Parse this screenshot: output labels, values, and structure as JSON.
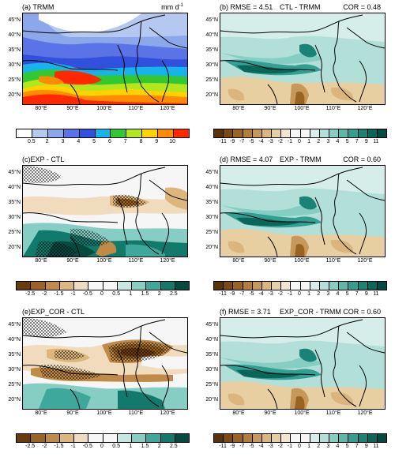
{
  "panels": [
    {
      "id": "a",
      "title_left": "(a) TRMM",
      "title_mid": "",
      "title_right": "mm d",
      "title_right_sup": "-1",
      "type": "precip",
      "colorbar": {
        "labels": [
          "0.5",
          "2",
          "3",
          "4",
          "5",
          "6",
          "7",
          "8",
          "9",
          "10"
        ],
        "colors": [
          "#ffffff",
          "#b4c8f0",
          "#8ca8eb",
          "#5a73e6",
          "#3250dc",
          "#16b4ec",
          "#32c832",
          "#b4e61e",
          "#ffd200",
          "#ff8c00",
          "#ff2800"
        ]
      }
    },
    {
      "id": "b",
      "title_left": "(b) RMSE = 4.51",
      "title_mid": "CTL - TRMM",
      "title_right": "COR = 0.48",
      "type": "diff-wide",
      "colorbar": {
        "labels": [
          "-11",
          "-9",
          "-7",
          "-5",
          "-4",
          "-3",
          "-2",
          "-1",
          "0",
          "1",
          "2",
          "3",
          "4",
          "5",
          "7",
          "9",
          "11"
        ],
        "colors": [
          "#5a3205",
          "#7c4a10",
          "#9a6420",
          "#b27e3a",
          "#c8985a",
          "#dab67c",
          "#e8cfa2",
          "#f4e6cc",
          "#f6f6f6",
          "#f6f6f6",
          "#d6eeea",
          "#b2e0d8",
          "#86cec4",
          "#5cb8ab",
          "#339e92",
          "#1a8276",
          "#0a665a",
          "#034a40"
        ]
      }
    },
    {
      "id": "c",
      "title_left": "(c)EXP - CTL",
      "title_mid": "",
      "title_right": "",
      "type": "diff-narrow",
      "colorbar": {
        "labels": [
          "-2.5",
          "-2",
          "-1.5",
          "-1",
          "-0.5",
          "0",
          "0.5",
          "1",
          "1.5",
          "2",
          "2.5"
        ],
        "colors": [
          "#6a3c0a",
          "#9a6420",
          "#c08a48",
          "#dcb67c",
          "#f0dcbc",
          "#f6f6f6",
          "#f6f6f6",
          "#c6e8e2",
          "#86cec4",
          "#3ea89c",
          "#127a6c",
          "#034a40"
        ]
      }
    },
    {
      "id": "d",
      "title_left": "(d) RMSE = 4.07",
      "title_mid": "EXP - TRMM",
      "title_right": "COR = 0.60",
      "type": "diff-wide",
      "colorbar": {
        "labels": [
          "-11",
          "-9",
          "-7",
          "-5",
          "-4",
          "-3",
          "-2",
          "-1",
          "0",
          "1",
          "2",
          "3",
          "4",
          "5",
          "7",
          "9",
          "11"
        ],
        "colors": [
          "#5a3205",
          "#7c4a10",
          "#9a6420",
          "#b27e3a",
          "#c8985a",
          "#dab67c",
          "#e8cfa2",
          "#f4e6cc",
          "#f6f6f6",
          "#f6f6f6",
          "#d6eeea",
          "#b2e0d8",
          "#86cec4",
          "#5cb8ab",
          "#339e92",
          "#1a8276",
          "#0a665a",
          "#034a40"
        ]
      }
    },
    {
      "id": "e",
      "title_left": "(e)EXP_COR - CTL",
      "title_mid": "",
      "title_right": "",
      "type": "diff-narrow",
      "colorbar": {
        "labels": [
          "-2.5",
          "-2",
          "-1.5",
          "-1",
          "-0.5",
          "0",
          "0.5",
          "1",
          "1.5",
          "2",
          "2.5"
        ],
        "colors": [
          "#6a3c0a",
          "#9a6420",
          "#c08a48",
          "#dcb67c",
          "#f0dcbc",
          "#f6f6f6",
          "#f6f6f6",
          "#c6e8e2",
          "#86cec4",
          "#3ea89c",
          "#127a6c",
          "#034a40"
        ]
      }
    },
    {
      "id": "f",
      "title_left": "(f) RMSE = 3.71",
      "title_mid": "EXP_COR - TRMM",
      "title_right": "COR = 0.60",
      "type": "diff-wide",
      "colorbar": {
        "labels": [
          "-11",
          "-9",
          "-7",
          "-5",
          "-4",
          "-3",
          "-2",
          "-1",
          "0",
          "1",
          "2",
          "3",
          "4",
          "5",
          "7",
          "9",
          "11"
        ],
        "colors": [
          "#5a3205",
          "#7c4a10",
          "#9a6420",
          "#b27e3a",
          "#c8985a",
          "#dab67c",
          "#e8cfa2",
          "#f4e6cc",
          "#f6f6f6",
          "#f6f6f6",
          "#d6eeea",
          "#b2e0d8",
          "#86cec4",
          "#5cb8ab",
          "#339e92",
          "#1a8276",
          "#0a665a",
          "#034a40"
        ]
      }
    }
  ],
  "lat_labels": [
    "45°N",
    "40°N",
    "35°N",
    "30°N",
    "25°N",
    "20°N"
  ],
  "lon_labels": [
    "80°E",
    "90°E",
    "100°E",
    "110°E",
    "120°E"
  ]
}
